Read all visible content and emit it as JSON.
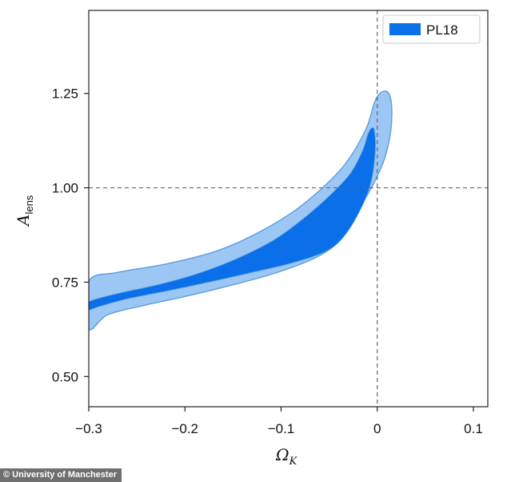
{
  "chart_data": {
    "type": "contour",
    "xlabel": "Ω",
    "xlabel_sub": "K",
    "ylabel": "A",
    "ylabel_sub": "lens",
    "xlim": [
      -0.3,
      0.115
    ],
    "ylim": [
      0.42,
      1.47
    ],
    "x_ticks": [
      -0.3,
      -0.2,
      -0.1,
      0,
      0.1
    ],
    "x_tick_labels": [
      "−0.3",
      "−0.2",
      "−0.1",
      "0",
      "0.1"
    ],
    "y_ticks": [
      0.5,
      0.75,
      1.0,
      1.25
    ],
    "y_tick_labels": [
      "0.50",
      "0.75",
      "1.00",
      "1.25"
    ],
    "reference_lines": {
      "x": 0,
      "y": 1.0,
      "style": "dashed"
    },
    "legend": {
      "position": "top-right",
      "entries": [
        {
          "label": "PL18",
          "color": "#0a6fe8"
        }
      ]
    },
    "series": [
      {
        "name": "PL18",
        "color_outer": "#9cc6f3",
        "color_inner": "#0a6fe8",
        "edge_color": "#5a9ee0",
        "outer_contour": [
          [
            -0.3,
            0.752
          ],
          [
            -0.27,
            0.776
          ],
          [
            -0.22,
            0.798
          ],
          [
            -0.17,
            0.83
          ],
          [
            -0.13,
            0.873
          ],
          [
            -0.09,
            0.932
          ],
          [
            -0.06,
            0.993
          ],
          [
            -0.033,
            1.064
          ],
          [
            -0.012,
            1.154
          ],
          [
            -0.003,
            1.225
          ],
          [
            0.002,
            1.248
          ],
          [
            0.007,
            1.256
          ],
          [
            0.012,
            1.25
          ],
          [
            0.015,
            1.215
          ],
          [
            0.014,
            1.15
          ],
          [
            0.008,
            1.08
          ],
          [
            -0.002,
            1.02
          ],
          [
            -0.015,
            0.96
          ],
          [
            -0.03,
            0.898
          ],
          [
            -0.045,
            0.846
          ],
          [
            -0.07,
            0.808
          ],
          [
            -0.11,
            0.771
          ],
          [
            -0.15,
            0.743
          ],
          [
            -0.2,
            0.712
          ],
          [
            -0.24,
            0.69
          ],
          [
            -0.28,
            0.664
          ],
          [
            -0.3,
            0.627
          ]
        ],
        "inner_contour": [
          [
            -0.3,
            0.698
          ],
          [
            -0.27,
            0.72
          ],
          [
            -0.23,
            0.742
          ],
          [
            -0.19,
            0.77
          ],
          [
            -0.15,
            0.808
          ],
          [
            -0.11,
            0.858
          ],
          [
            -0.08,
            0.912
          ],
          [
            -0.05,
            0.978
          ],
          [
            -0.028,
            1.038
          ],
          [
            -0.015,
            1.1
          ],
          [
            -0.01,
            1.14
          ],
          [
            -0.006,
            1.158
          ],
          [
            -0.003,
            1.152
          ],
          [
            -0.002,
            1.1
          ],
          [
            -0.006,
            1.02
          ],
          [
            -0.016,
            0.95
          ],
          [
            -0.035,
            0.87
          ],
          [
            -0.055,
            0.83
          ],
          [
            -0.09,
            0.8
          ],
          [
            -0.13,
            0.776
          ],
          [
            -0.17,
            0.753
          ],
          [
            -0.22,
            0.726
          ],
          [
            -0.26,
            0.706
          ],
          [
            -0.29,
            0.685
          ],
          [
            -0.3,
            0.677
          ]
        ]
      }
    ]
  },
  "watermark": {
    "label": "© University of Manchester"
  }
}
